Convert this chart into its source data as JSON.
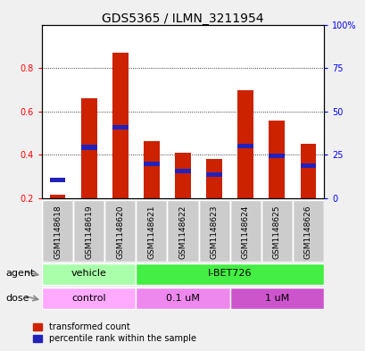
{
  "title": "GDS5365 / ILMN_3211954",
  "samples": [
    "GSM1148618",
    "GSM1148619",
    "GSM1148620",
    "GSM1148621",
    "GSM1148622",
    "GSM1148623",
    "GSM1148624",
    "GSM1148625",
    "GSM1148626"
  ],
  "transformed_count": [
    0.218,
    0.66,
    0.87,
    0.465,
    0.41,
    0.383,
    0.698,
    0.558,
    0.45
  ],
  "percentile_values": [
    0.285,
    0.435,
    0.527,
    0.358,
    0.325,
    0.31,
    0.44,
    0.395,
    0.35
  ],
  "bar_bottom": 0.2,
  "ylim_left": [
    0.2,
    1.0
  ],
  "ylim_right": [
    0,
    100
  ],
  "yticks_left": [
    0.2,
    0.4,
    0.6,
    0.8
  ],
  "ytick_labels_left": [
    "0.2",
    "0.4",
    "0.6",
    "0.8"
  ],
  "yticks_right": [
    0,
    25,
    50,
    75,
    100
  ],
  "ytick_labels_right": [
    "0",
    "25",
    "50",
    "75",
    "100%"
  ],
  "bar_color_red": "#cc2200",
  "bar_color_blue": "#2222bb",
  "bar_width": 0.5,
  "agent_groups": [
    {
      "label": "vehicle",
      "start": 0,
      "end": 3,
      "color": "#aaffaa"
    },
    {
      "label": "I-BET726",
      "start": 3,
      "end": 9,
      "color": "#44ee44"
    }
  ],
  "dose_groups": [
    {
      "label": "control",
      "start": 0,
      "end": 3,
      "color": "#ffaaff"
    },
    {
      "label": "0.1 uM",
      "start": 3,
      "end": 6,
      "color": "#ee88ee"
    },
    {
      "label": "1 uM",
      "start": 6,
      "end": 9,
      "color": "#cc55cc"
    }
  ],
  "fig_bg": "#f0f0f0",
  "plot_bg": "#ffffff",
  "xtick_bg": "#cccccc",
  "legend_red_label": "transformed count",
  "legend_blue_label": "percentile rank within the sample",
  "agent_label": "agent",
  "dose_label": "dose",
  "title_fontsize": 10,
  "tick_fontsize": 7,
  "label_fontsize": 8
}
